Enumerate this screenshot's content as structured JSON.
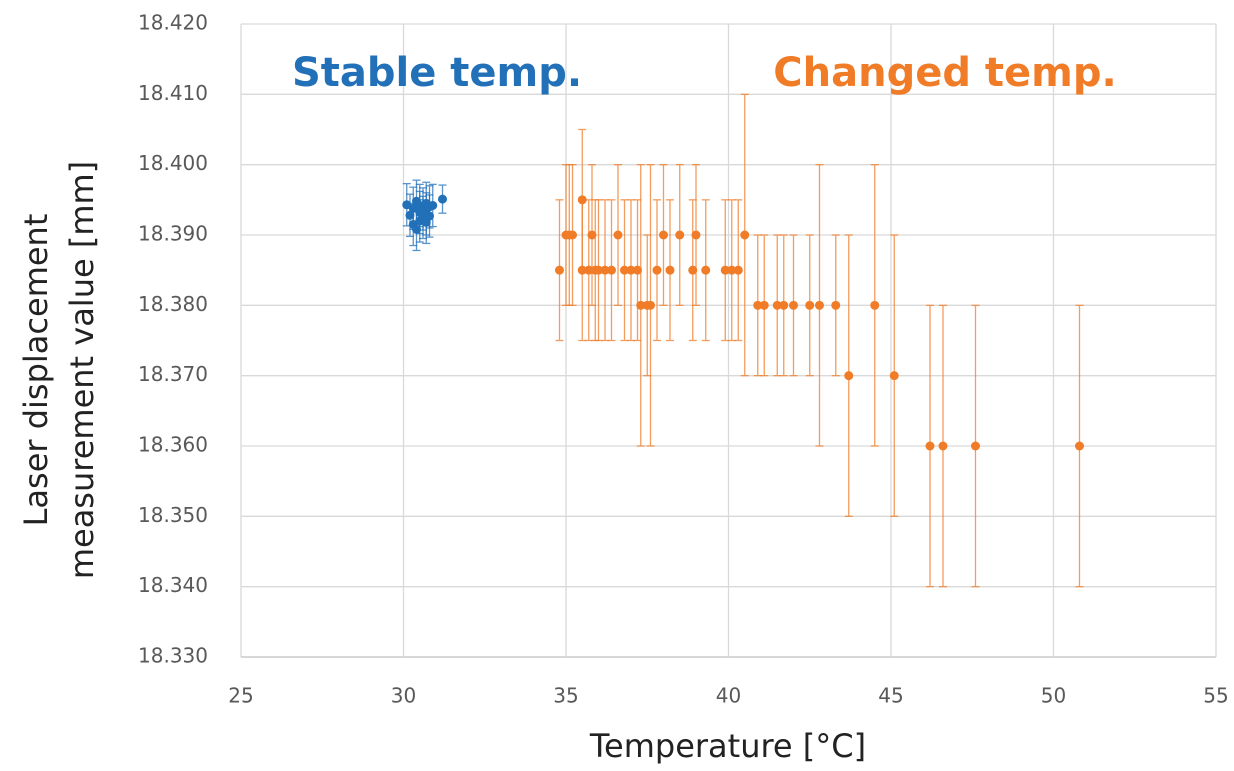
{
  "chart_data": {
    "type": "scatter",
    "xlabel": "Temperature [°C]",
    "ylabel": [
      "Laser displacement",
      "measurement value [mm]"
    ],
    "annotations": [
      {
        "text": "Stable temp.",
        "color": "#2170b8"
      },
      {
        "text": "Changed temp.",
        "color": "#f07c28"
      }
    ],
    "xlim": [
      25,
      55
    ],
    "xticks": [
      25,
      30,
      35,
      40,
      45,
      50,
      55
    ],
    "ylim": [
      18.33,
      18.42
    ],
    "yticks": [
      {
        "value": 18.33,
        "label": "18.330"
      },
      {
        "value": 18.34,
        "label": "18.340"
      },
      {
        "value": 18.35,
        "label": "18.350"
      },
      {
        "value": 18.36,
        "label": "18.360"
      },
      {
        "value": 18.37,
        "label": "18.370"
      },
      {
        "value": 18.38,
        "label": "18.380"
      },
      {
        "value": 18.39,
        "label": "18.390"
      },
      {
        "value": 18.4,
        "label": "18.400"
      },
      {
        "value": 18.41,
        "label": "18.410"
      },
      {
        "value": 18.42,
        "label": "18.420"
      }
    ],
    "grid": true,
    "series": [
      {
        "color": "#2170b8",
        "x": [
          30.1,
          30.2,
          30.3,
          30.3,
          30.4,
          30.4,
          30.5,
          30.5,
          30.5,
          30.6,
          30.6,
          30.7,
          30.7,
          30.7,
          30.8,
          30.8,
          30.9,
          31.2
        ],
        "values": [
          18.3943,
          18.3928,
          18.3915,
          18.3938,
          18.3948,
          18.3908,
          18.3932,
          18.392,
          18.3942,
          18.3925,
          18.3937,
          18.393,
          18.3945,
          18.3918,
          18.394,
          18.3927,
          18.3942,
          18.3951
        ],
        "errors": [
          0.003,
          0.003,
          0.003,
          0.003,
          0.003,
          0.003,
          0.003,
          0.003,
          0.003,
          0.003,
          0.003,
          0.003,
          0.003,
          0.003,
          0.003,
          0.003,
          0.003,
          0.002
        ]
      },
      {
        "color": "#f07c28",
        "x": [
          34.8,
          35.0,
          35.1,
          35.2,
          35.5,
          35.5,
          35.7,
          35.8,
          35.9,
          36.0,
          36.2,
          36.4,
          36.6,
          36.8,
          37.0,
          37.2,
          37.3,
          37.5,
          37.6,
          37.8,
          38.0,
          38.2,
          38.5,
          38.9,
          39.0,
          39.3,
          39.9,
          40.1,
          40.3,
          40.5,
          40.9,
          41.1,
          41.5,
          41.7,
          42.0,
          42.5,
          42.8,
          43.3,
          43.7,
          44.5,
          45.1,
          46.2,
          46.6,
          47.6,
          50.8
        ],
        "values": [
          18.385,
          18.39,
          18.39,
          18.39,
          18.395,
          18.385,
          18.385,
          18.39,
          18.385,
          18.385,
          18.385,
          18.385,
          18.39,
          18.385,
          18.385,
          18.385,
          18.38,
          18.38,
          18.38,
          18.385,
          18.39,
          18.385,
          18.39,
          18.385,
          18.39,
          18.385,
          18.385,
          18.385,
          18.385,
          18.39,
          18.38,
          18.38,
          18.38,
          18.38,
          18.38,
          18.38,
          18.38,
          18.38,
          18.37,
          18.38,
          18.37,
          18.36,
          18.36,
          18.36,
          18.36
        ],
        "errors": [
          0.01,
          0.01,
          0.01,
          0.01,
          0.01,
          0.01,
          0.01,
          0.01,
          0.01,
          0.01,
          0.01,
          0.01,
          0.01,
          0.01,
          0.01,
          0.01,
          0.02,
          0.01,
          0.02,
          0.01,
          0.01,
          0.01,
          0.01,
          0.01,
          0.01,
          0.01,
          0.01,
          0.01,
          0.01,
          0.02,
          0.01,
          0.01,
          0.01,
          0.01,
          0.01,
          0.01,
          0.02,
          0.01,
          0.02,
          0.02,
          0.02,
          0.02,
          0.02,
          0.02,
          0.02
        ]
      }
    ]
  }
}
